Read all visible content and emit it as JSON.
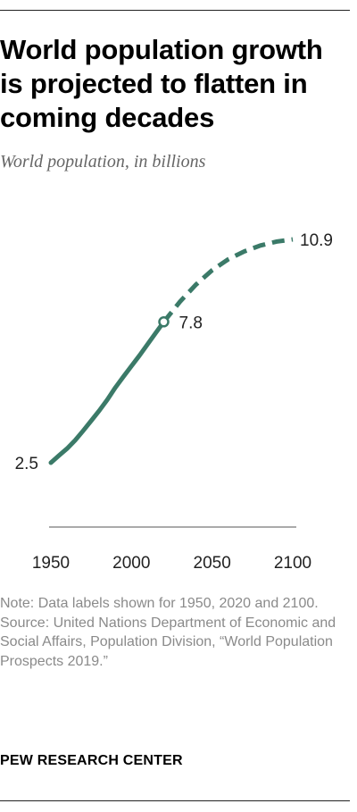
{
  "header": {
    "title": "World population growth is projected to flatten in coming decades",
    "subtitle": "World population, in billions"
  },
  "chart_data": {
    "type": "line",
    "title": "World population growth is projected to flatten in coming decades",
    "subtitle": "World population, in billions",
    "xlabel": "",
    "ylabel": "",
    "xlim": [
      1950,
      2100
    ],
    "x_ticks": [
      "1950",
      "2000",
      "2050",
      "2100"
    ],
    "grid": false,
    "legend": "none",
    "series": [
      {
        "estimates": {
          "x": [
            1950,
            1955,
            1960,
            1965,
            1970,
            1975,
            1980,
            1985,
            1990,
            1995,
            2000,
            2005,
            2010,
            2015,
            2020
          ],
          "y": [
            2.5,
            2.77,
            3.03,
            3.34,
            3.7,
            4.08,
            4.46,
            4.87,
            5.33,
            5.74,
            6.14,
            6.54,
            6.96,
            7.38,
            7.8
          ]
        },
        "projections": {
          "x": [
            2020,
            2030,
            2040,
            2050,
            2060,
            2070,
            2080,
            2090,
            2100
          ],
          "y": [
            7.8,
            8.55,
            9.2,
            9.74,
            10.15,
            10.45,
            10.67,
            10.82,
            10.9
          ]
        }
      }
    ],
    "data_labels": [
      {
        "x": 1950,
        "y": 2.5,
        "text": "2.5"
      },
      {
        "x": 2020,
        "y": 7.8,
        "text": "7.8"
      },
      {
        "x": 2100,
        "y": 10.9,
        "text": "10.9"
      }
    ]
  },
  "colors": {
    "line": "#3b7a68",
    "axis": "#aaaaaa",
    "title": "#000000",
    "subtitle": "#666666",
    "notes": "#8a8a8a"
  },
  "notes": {
    "note": "Note: Data labels shown for 1950, 2020 and 2100.",
    "source": "Source: United Nations Department of Economic and Social Affairs, Population Division, “World Population Prospects 2019.”"
  },
  "brand": "PEW RESEARCH CENTER"
}
